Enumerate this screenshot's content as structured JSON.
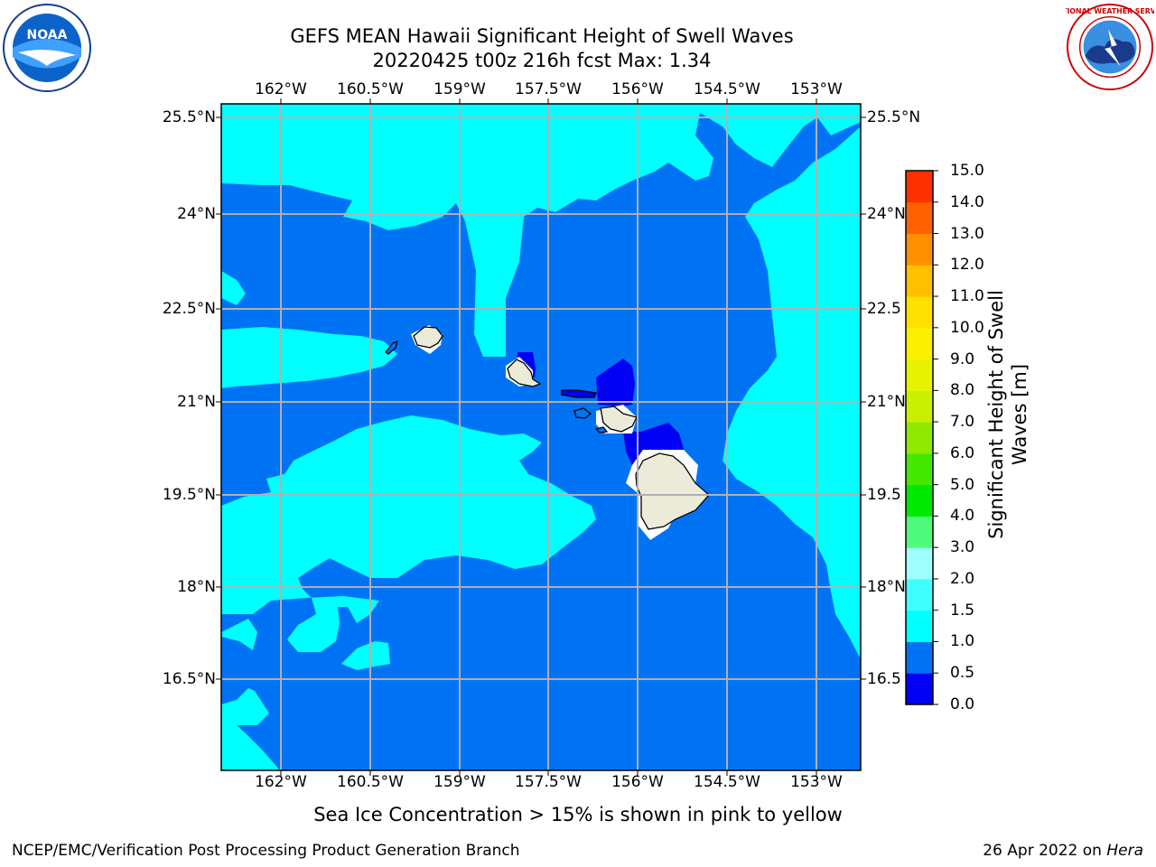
{
  "title": {
    "line1": "GEFS MEAN Hawaii Significant Height of Swell Waves",
    "line2": "20220425 t00z 216h fcst   Max: 1.34"
  },
  "logos": {
    "left": {
      "icon": "noaa-logo",
      "text": "NOAA"
    },
    "right": {
      "icon": "nws-logo",
      "text": "NATIONAL WEATHER SERVICE"
    }
  },
  "map": {
    "lon_ticks": [
      "162°W",
      "160.5°W",
      "159°W",
      "157.5°W",
      "156°W",
      "154.5°W",
      "153°W"
    ],
    "lat_ticks": [
      "25.5°N",
      "24°N",
      "22.5°N",
      "21°N",
      "19.5°N",
      "18°N",
      "16.5°N"
    ],
    "lat_ticks_right": [
      "25.5°N",
      "24°N",
      "22.5",
      "21°N",
      "19.5",
      "18°N",
      "16.5"
    ]
  },
  "colorbar": {
    "label_line1": "Significant Height of Swell",
    "label_line2": "Waves [m]",
    "ticks": [
      "0.0",
      "0.5",
      "1.0",
      "1.5",
      "2.0",
      "3.0",
      "4.0",
      "5.0",
      "6.0",
      "7.0",
      "8.0",
      "9.0",
      "10.0",
      "11.0",
      "12.0",
      "13.0",
      "14.0",
      "15.0"
    ],
    "colors": [
      "#0000f5",
      "#0073f5",
      "#00ffff",
      "#40ffff",
      "#9ffffc",
      "#4ffa7c",
      "#00e800",
      "#45e800",
      "#8fe800",
      "#c8f000",
      "#e6f200",
      "#fbf000",
      "#ffe000",
      "#ffc000",
      "#ff9000",
      "#ff6000",
      "#ff3000",
      "#ff0000"
    ]
  },
  "colors": {
    "ocean_1_0": "#0073f5",
    "ocean_1_5": "#00ffff",
    "ocean_0_5": "#0000f5",
    "land": "#ecebd9",
    "grid": "#b0b0b0"
  },
  "footnote": "Sea Ice Concentration > 15% is shown in pink to yellow",
  "credit": {
    "left": "NCEP/EMC/Verification Post Processing Product Generation Branch",
    "right_prefix": "26 Apr 2022 on ",
    "right_host": "Hera"
  }
}
